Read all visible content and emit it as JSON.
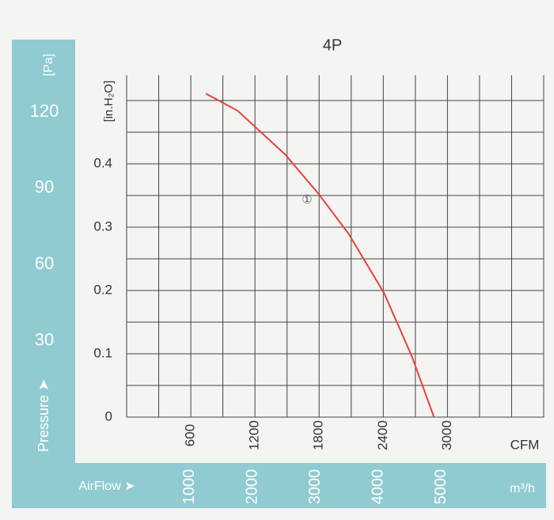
{
  "chart_data": {
    "type": "line",
    "title": "4P",
    "x_label": "CFM",
    "y_label": "[in.H₂O]",
    "x2_label": "m³/h",
    "y2_label": "[Pa]",
    "x2_title": "AirFlow ➤",
    "y2_title": "Pressure ➤",
    "annotation": "①",
    "series": [
      {
        "name": "1",
        "color": "#e8413c",
        "x": [
          740,
          1037,
          1481,
          1793,
          2074,
          2407,
          2667,
          2874
        ],
        "values": [
          0.511,
          0.484,
          0.415,
          0.353,
          0.29,
          0.196,
          0.096,
          0
        ]
      }
    ],
    "xlim": [
      0,
      3900
    ],
    "xticks": [
      600,
      1200,
      1800,
      2400,
      3000
    ],
    "xgrid": [
      0,
      300,
      600,
      900,
      1200,
      1500,
      1800,
      2100,
      2400,
      2700,
      3000,
      3300,
      3600,
      3900
    ],
    "ylim": [
      0,
      0.54
    ],
    "yticks": [
      0,
      0.1,
      0.2,
      0.3,
      0.4
    ],
    "ygrid": [
      0,
      0.05,
      0.1,
      0.15,
      0.2,
      0.25,
      0.3,
      0.35,
      0.4,
      0.45,
      0.5
    ],
    "x2lim": [
      0,
      6626
    ],
    "x2ticks": [
      1000,
      2000,
      3000,
      4000,
      5000
    ],
    "y2lim": [
      0,
      134.5
    ],
    "y2ticks": [
      30,
      60,
      90,
      120
    ],
    "grid": true
  }
}
